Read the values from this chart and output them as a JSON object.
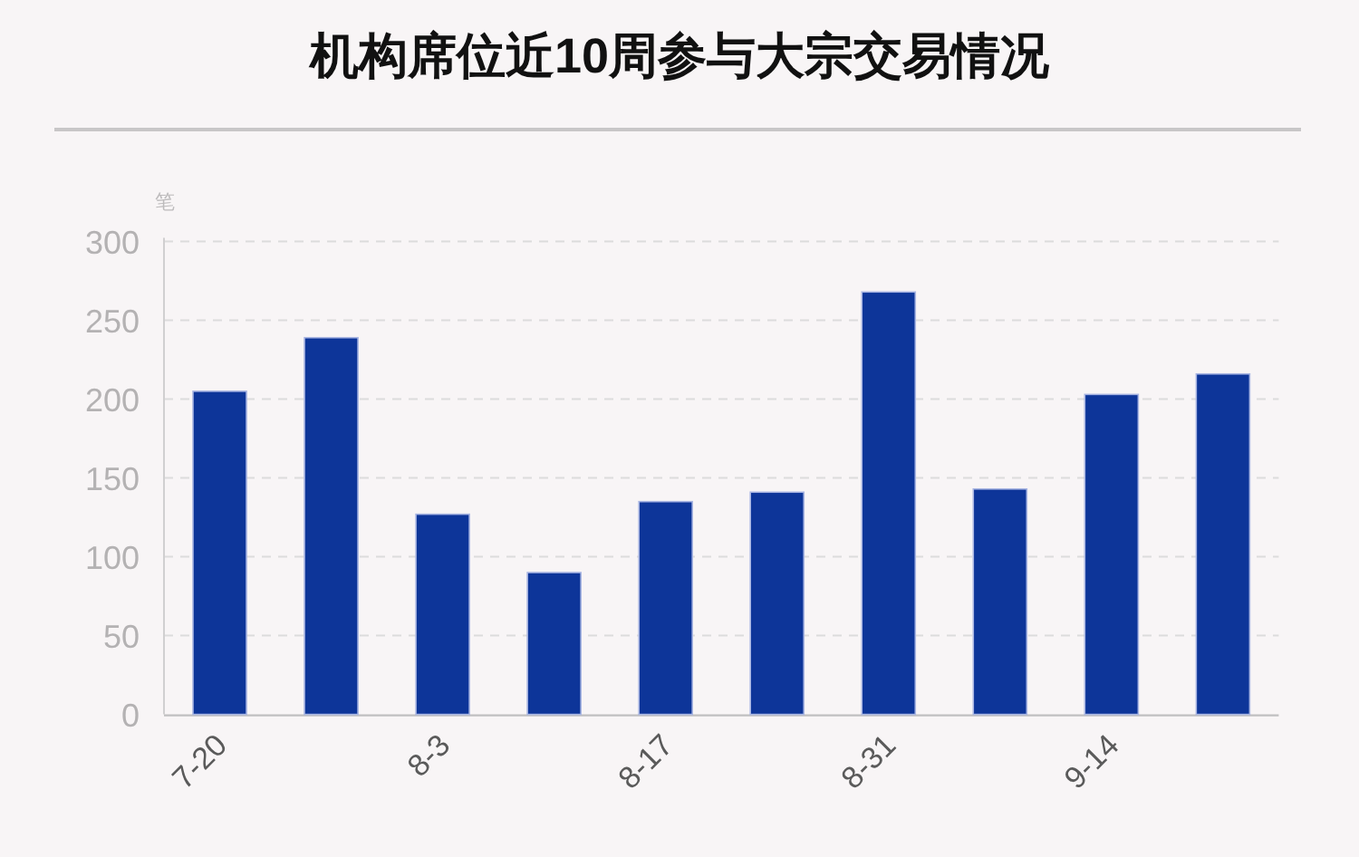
{
  "chart_data": {
    "type": "bar",
    "title": "机构席位近10周参与大宗交易情况",
    "ylabel": "笔",
    "categories": [
      "7-20",
      null,
      "8-3",
      null,
      "8-17",
      null,
      "8-31",
      null,
      "9-14",
      null
    ],
    "values": [
      205,
      239,
      127,
      90,
      135,
      141,
      268,
      143,
      203,
      216
    ],
    "color": "#0d3599",
    "ylim": [
      0,
      300
    ],
    "yticks": [
      0,
      50,
      100,
      150,
      200,
      250,
      300
    ],
    "grid": "y"
  }
}
